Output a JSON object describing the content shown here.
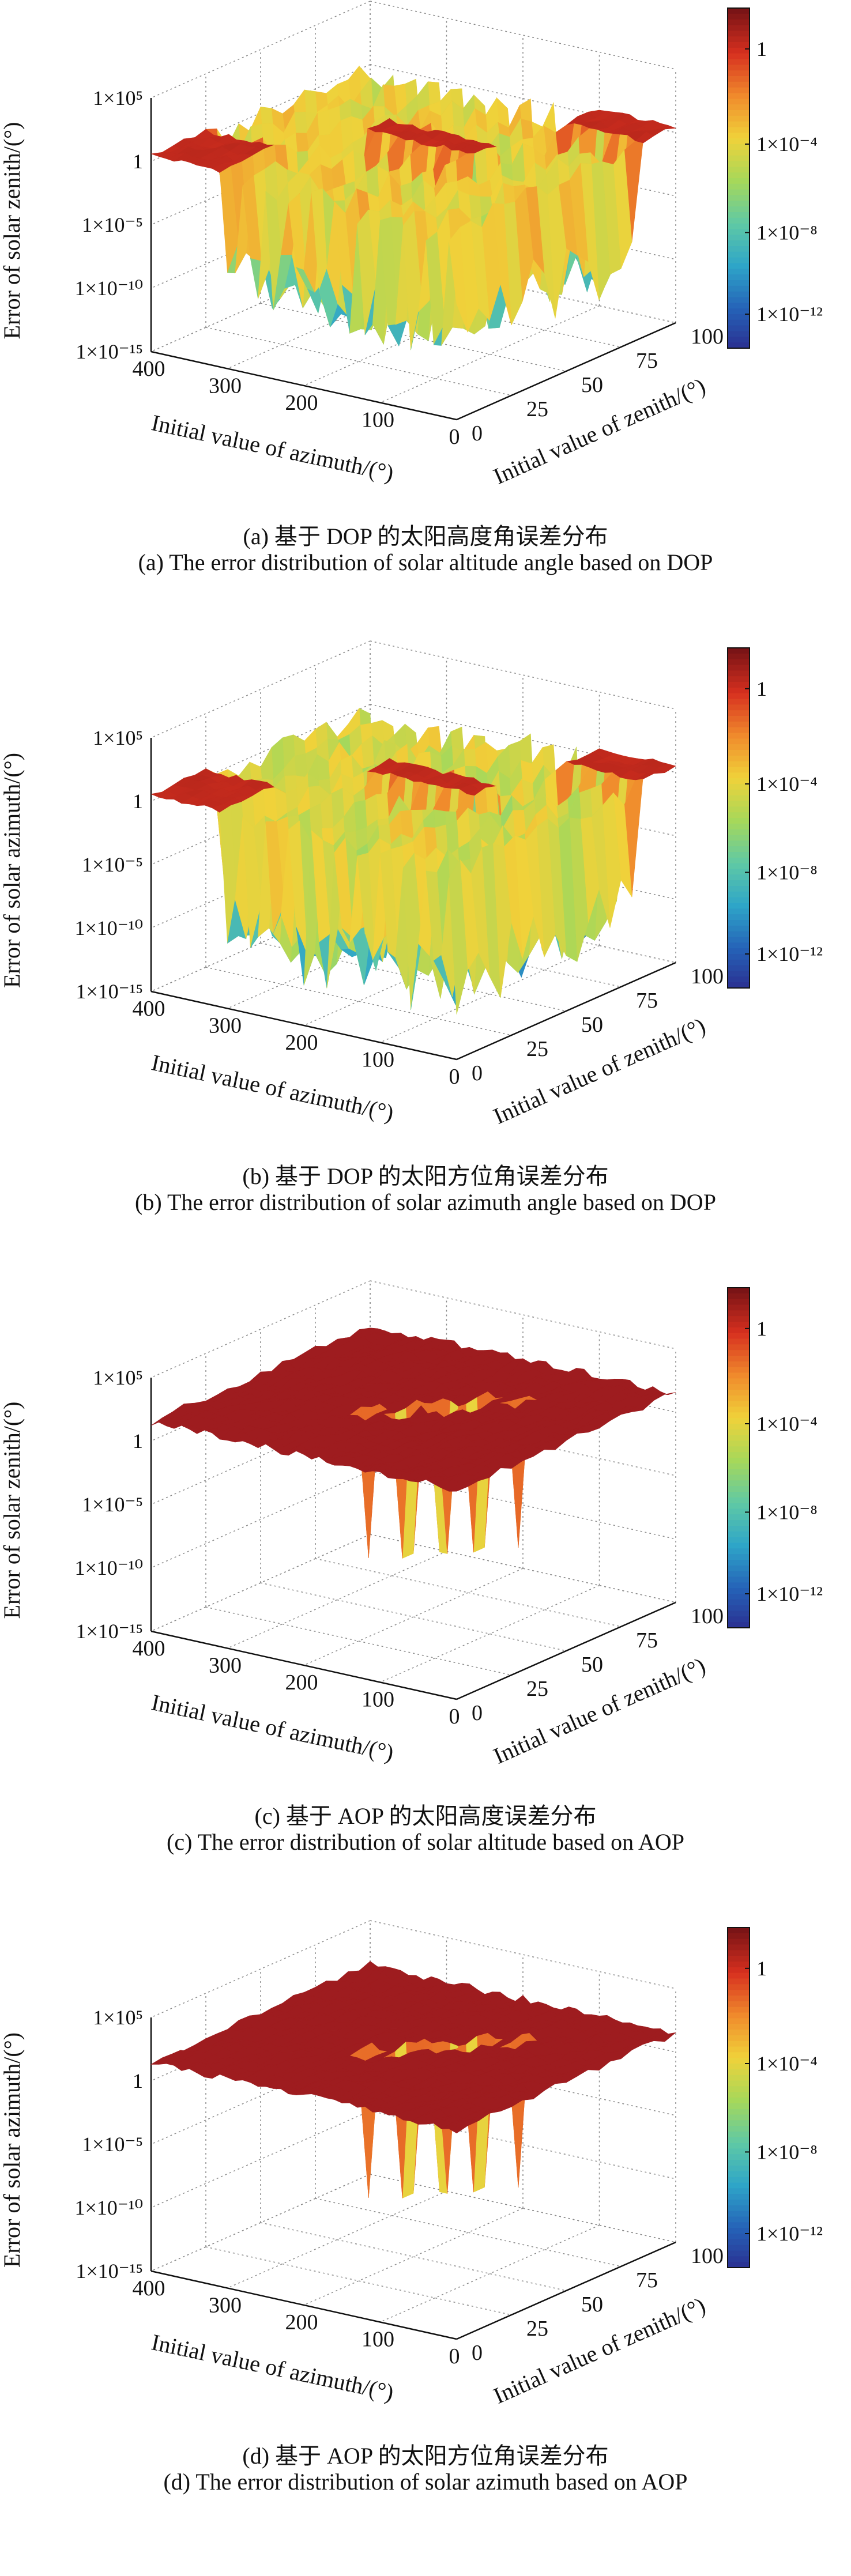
{
  "colors": {
    "colormap": [
      "#2b2d8f",
      "#2563b8",
      "#2ea5c8",
      "#5fc9a5",
      "#a6d85a",
      "#f0d23a",
      "#f08a2c",
      "#d7301f",
      "#7a1416"
    ],
    "surface_high": "#9e1c1f",
    "axes": "#111111",
    "grid": "#8a8a8a"
  },
  "chart_data": [
    {
      "type": "surface3d",
      "zlabel": "Error of solar zenith/(°)",
      "xlabel": "Initial value of azimuth/(°)",
      "ylabel": "Initial value of zenith/(°)",
      "x_ticks": [
        "400",
        "300",
        "200",
        "100",
        "0"
      ],
      "y_ticks": [
        "0",
        "25",
        "50",
        "75",
        "100"
      ],
      "z_ticks": [
        "1×10⁵",
        "1",
        "1×10⁻⁵",
        "1×10⁻¹⁰",
        "1×10⁻¹⁵"
      ],
      "colorbar_ticks": [
        "1",
        "1×10⁻⁴",
        "1×10⁻⁸",
        "1×10⁻¹²"
      ],
      "xlim": [
        0,
        400
      ],
      "ylim": [
        0,
        100
      ],
      "zlim_log10": [
        -15,
        5
      ],
      "plateau_log10": 0.5,
      "drop_floor_log10": -11,
      "caption_cn": "(a) 基于 DOP 的太阳高度角误差分布",
      "caption_en": "(a) The error distribution of solar altitude angle based on DOP"
    },
    {
      "type": "surface3d",
      "zlabel": "Error of solar azimuth/(°)",
      "xlabel": "Initial value of azimuth/(°)",
      "ylabel": "Initial value of zenith/(°)",
      "x_ticks": [
        "400",
        "300",
        "200",
        "100",
        "0"
      ],
      "y_ticks": [
        "0",
        "25",
        "50",
        "75",
        "100"
      ],
      "z_ticks": [
        "1×10⁵",
        "1",
        "1×10⁻⁵",
        "1×10⁻¹⁰",
        "1×10⁻¹⁵"
      ],
      "colorbar_ticks": [
        "1",
        "1×10⁻⁴",
        "1×10⁻⁸",
        "1×10⁻¹²"
      ],
      "xlim": [
        0,
        400
      ],
      "ylim": [
        0,
        100
      ],
      "zlim_log10": [
        -15,
        5
      ],
      "plateau_log10": 0.5,
      "drop_floor_log10": -12,
      "caption_cn": "(b) 基于 DOP 的太阳方位角误差分布",
      "caption_en": "(b) The error distribution of solar azimuth angle based on DOP"
    },
    {
      "type": "surface3d",
      "zlabel": "Error of solar zenith/(°)",
      "xlabel": "Initial value of azimuth/(°)",
      "ylabel": "Initial value of zenith/(°)",
      "x_ticks": [
        "400",
        "300",
        "200",
        "100",
        "0"
      ],
      "y_ticks": [
        "0",
        "25",
        "50",
        "75",
        "100"
      ],
      "z_ticks": [
        "1×10⁵",
        "1",
        "1×10⁻⁵",
        "1×10⁻¹⁰",
        "1×10⁻¹⁵"
      ],
      "colorbar_ticks": [
        "1",
        "1×10⁻⁴",
        "1×10⁻⁸",
        "1×10⁻¹²"
      ],
      "xlim": [
        0,
        400
      ],
      "ylim": [
        0,
        100
      ],
      "zlim_log10": [
        -15,
        5
      ],
      "plateau_log10": 1.5,
      "drop_floor_log10": -10,
      "caption_cn": "(c) 基于 AOP 的太阳高度误差分布",
      "caption_en": "(c) The error distribution of solar altitude based on AOP"
    },
    {
      "type": "surface3d",
      "zlabel": "Error of solar azimuth/(°)",
      "xlabel": "Initial value of azimuth/(°)",
      "ylabel": "Initial value of zenith/(°)",
      "x_ticks": [
        "400",
        "300",
        "200",
        "100",
        "0"
      ],
      "y_ticks": [
        "0",
        "25",
        "50",
        "75",
        "100"
      ],
      "z_ticks": [
        "1×10⁵",
        "1",
        "1×10⁻⁵",
        "1×10⁻¹⁰",
        "1×10⁻¹⁵"
      ],
      "colorbar_ticks": [
        "1",
        "1×10⁻⁴",
        "1×10⁻⁸",
        "1×10⁻¹²"
      ],
      "xlim": [
        0,
        400
      ],
      "ylim": [
        0,
        100
      ],
      "zlim_log10": [
        -15,
        5
      ],
      "plateau_log10": 1.5,
      "drop_floor_log10": -10,
      "caption_cn": "(d) 基于 AOP 的太阳方位角误差分布",
      "caption_en": "(d) The error distribution of solar azimuth based on AOP"
    }
  ]
}
